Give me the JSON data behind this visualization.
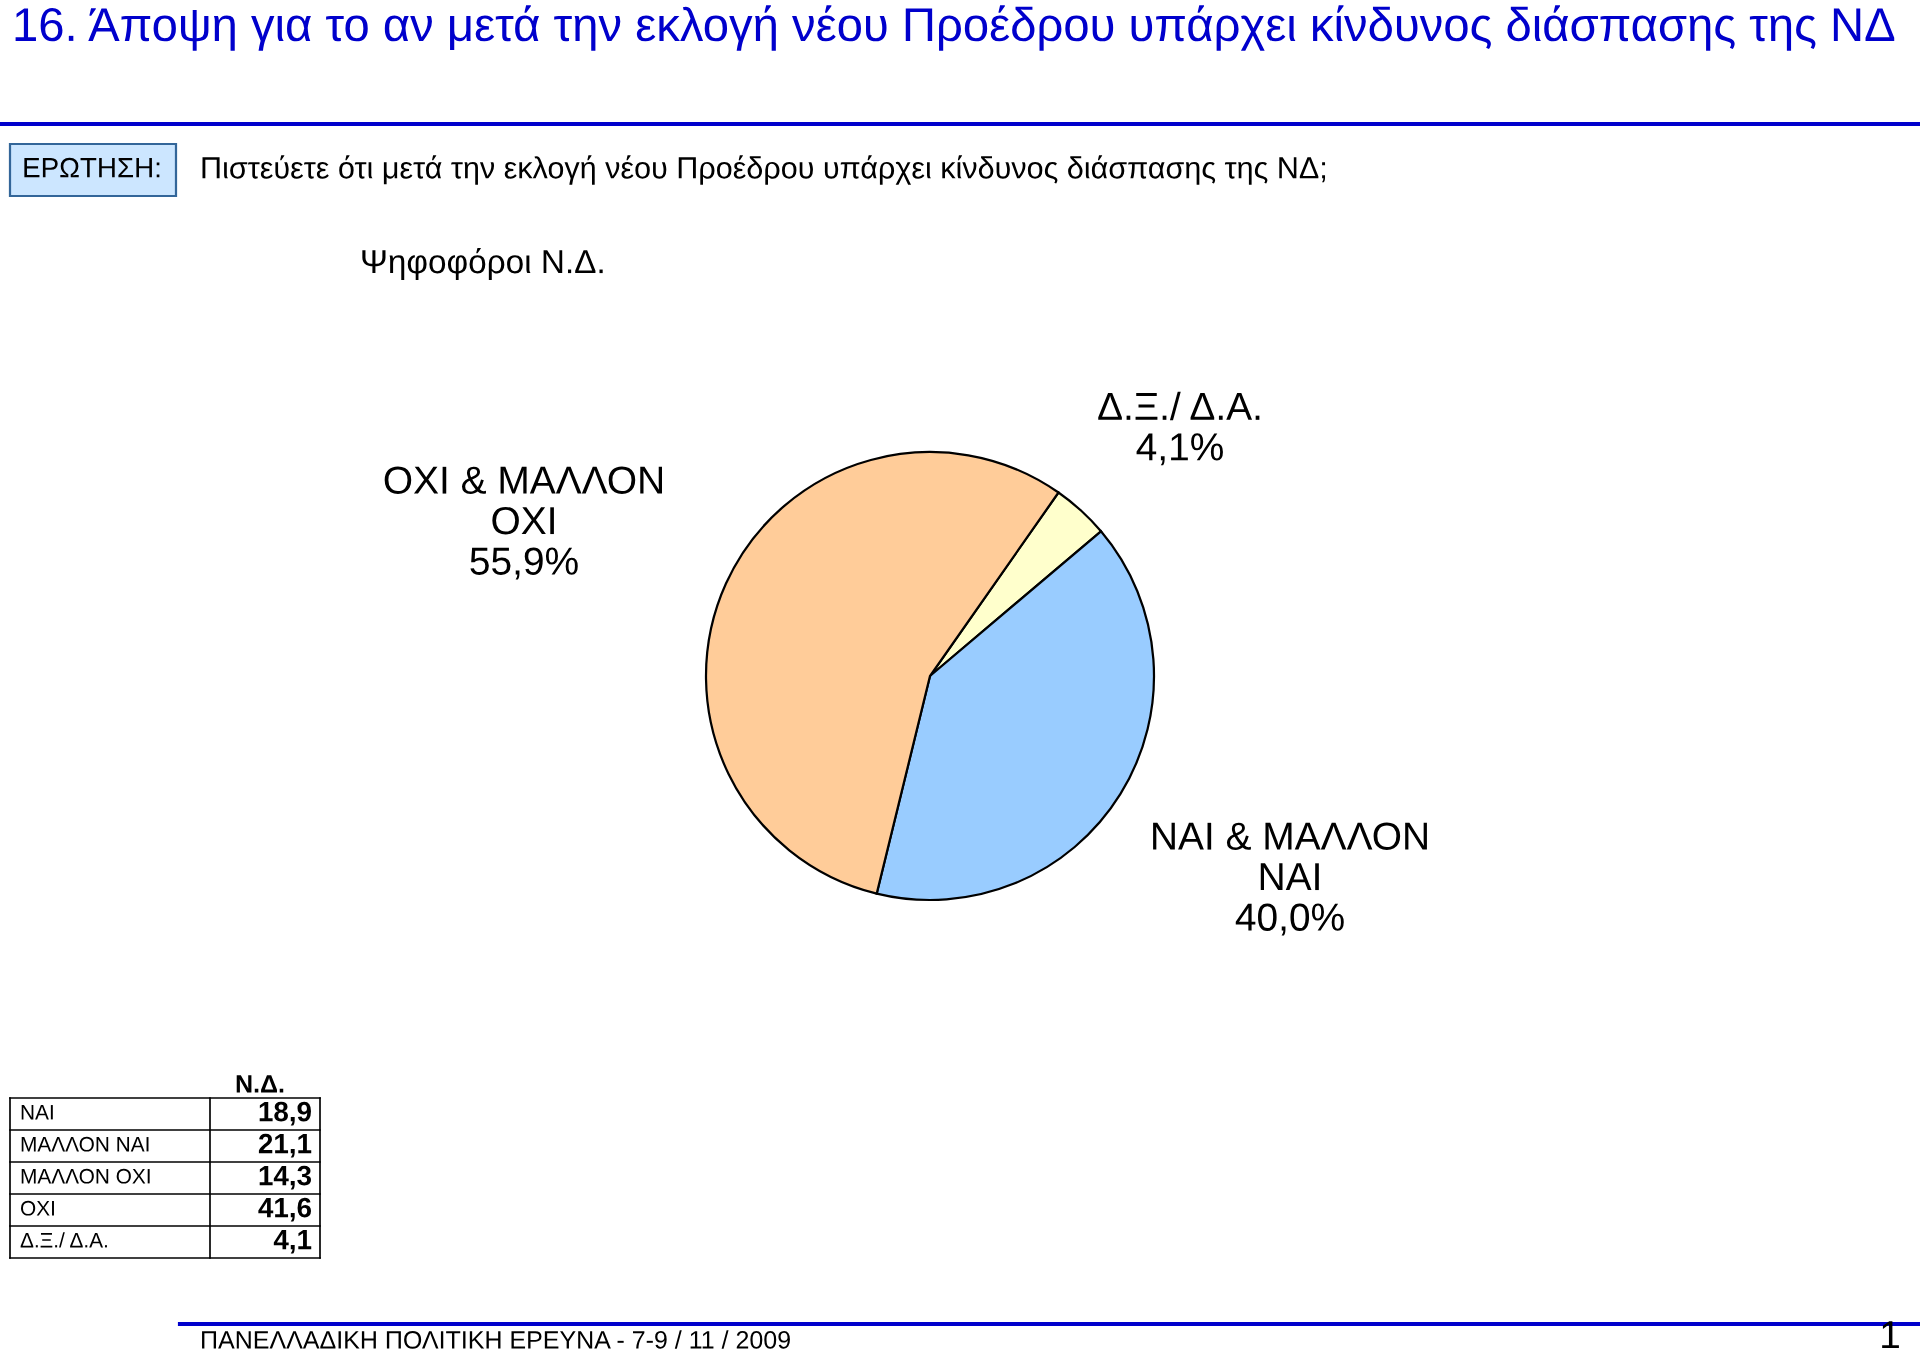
{
  "chart_data": [
    {
      "type": "pie",
      "title": "16. Άποψη για το αν μετά την εκλογή νέου Προέδρου υπάρχει κίνδυνος διάσπασης της ΝΔ",
      "subtitle": "Πιστεύετε ότι μετά την εκλογή νέου Προέδρου υπάρχει κίνδυνος διάσπασης της ΝΔ;",
      "categories": [
        "Δ.Ξ./ Δ.Α.",
        "ΝΑΙ & ΜΑΛΛΟΝ\nΝΑΙ",
        "ΟΧΙ & ΜΑΛΛΟΝ\nΟΧΙ"
      ],
      "values": [
        4.1,
        40.0,
        55.9
      ],
      "value_labels": [
        "4,1%",
        "40,0%",
        "55,9%"
      ],
      "colors": [
        "#ffffcc",
        "#99ccff",
        "#ffcc99"
      ],
      "annotations": [
        "ΕΡΩΤΗΣΗ:",
        "Ψηφοφόροι Ν.Δ.",
        "ΠΑΝΕΛΛΑΔΙΚΗ ΠΟΛΙΤΙΚΗ ΕΡΕΥΝΑ - 7-9 / 11 / 2009",
        "1"
      ]
    },
    {
      "type": "other",
      "title": "Ν.Δ.",
      "categories": [
        "ΝΑΙ",
        "ΜΑΛΛΟΝ ΝΑΙ",
        "ΜΑΛΛΟΝ ΟΧΙ",
        "ΟΧΙ",
        "Δ.Ξ./ Δ.Α."
      ],
      "values": [
        18.9,
        21.1,
        14.3,
        41.6,
        4.1
      ],
      "value_labels": [
        "18,9",
        "21,1",
        "14,3",
        "41,6",
        "4,1"
      ]
    }
  ]
}
